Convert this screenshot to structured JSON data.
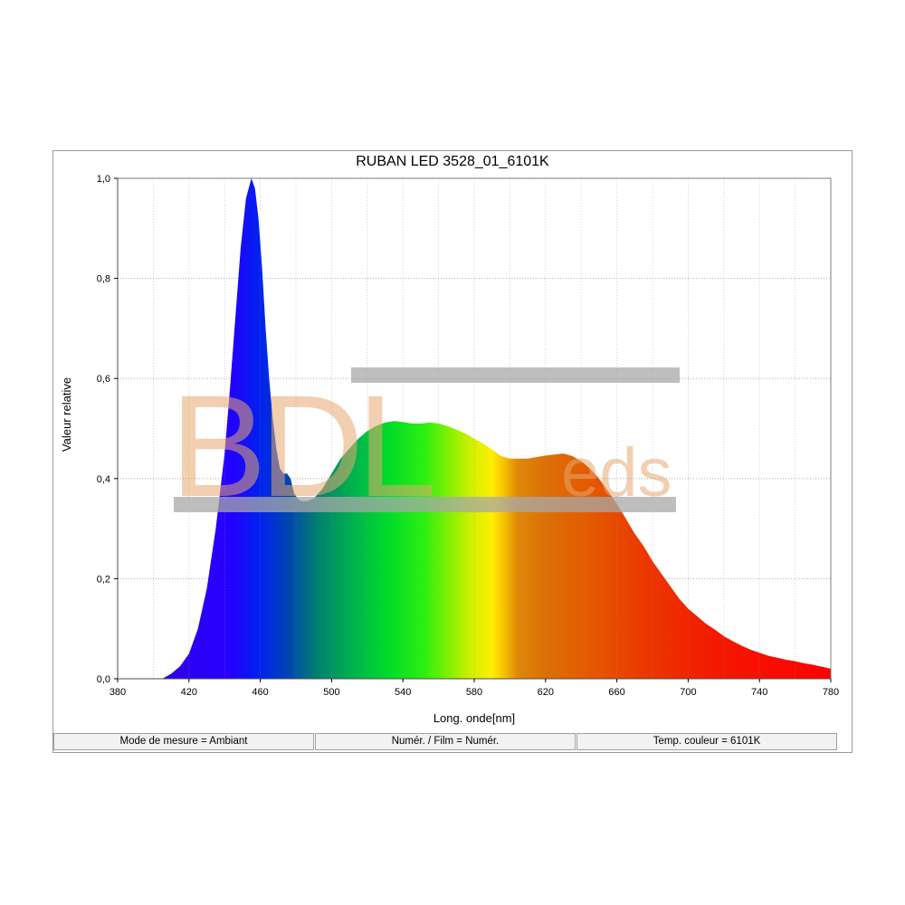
{
  "chart_data": {
    "type": "area",
    "title": "RUBAN LED 3528_01_6101K",
    "xlabel": "Long. onde[nm]",
    "ylabel": "Valeur relative",
    "xlim": [
      380,
      780
    ],
    "ylim": [
      0,
      1.0
    ],
    "x_ticks": [
      "380",
      "420",
      "460",
      "500",
      "540",
      "580",
      "620",
      "660",
      "700",
      "740",
      "780"
    ],
    "y_ticks": [
      "0,0",
      "0,2",
      "0,4",
      "0,6",
      "0,8",
      "1,0"
    ],
    "grid": true,
    "fill": "visible spectrum gradient",
    "series": [
      {
        "x": [
          405,
          410,
          415,
          420,
          425,
          430,
          435,
          440,
          443,
          446,
          449,
          452,
          455,
          457,
          459,
          461,
          463,
          465,
          467,
          469,
          471,
          473,
          475,
          477,
          479,
          481,
          483,
          486,
          490,
          495,
          500,
          505,
          510,
          515,
          520,
          525,
          530,
          535,
          540,
          545,
          550,
          555,
          560,
          565,
          570,
          575,
          580,
          585,
          590,
          595,
          600,
          605,
          610,
          615,
          620,
          625,
          630,
          635,
          640,
          645,
          650,
          655,
          660,
          665,
          670,
          675,
          680,
          685,
          690,
          695,
          700,
          705,
          710,
          715,
          720,
          725,
          730,
          735,
          740,
          745,
          750,
          755,
          760,
          765,
          770,
          775,
          780
        ],
        "y": [
          0.0,
          0.01,
          0.025,
          0.05,
          0.1,
          0.18,
          0.3,
          0.45,
          0.58,
          0.72,
          0.86,
          0.96,
          1.0,
          0.98,
          0.92,
          0.82,
          0.7,
          0.6,
          0.52,
          0.46,
          0.42,
          0.41,
          0.41,
          0.4,
          0.37,
          0.36,
          0.355,
          0.355,
          0.36,
          0.38,
          0.41,
          0.44,
          0.46,
          0.48,
          0.495,
          0.505,
          0.512,
          0.515,
          0.513,
          0.51,
          0.51,
          0.512,
          0.51,
          0.505,
          0.498,
          0.49,
          0.48,
          0.47,
          0.458,
          0.445,
          0.44,
          0.44,
          0.44,
          0.443,
          0.446,
          0.448,
          0.45,
          0.445,
          0.435,
          0.42,
          0.4,
          0.375,
          0.35,
          0.32,
          0.29,
          0.265,
          0.235,
          0.21,
          0.185,
          0.16,
          0.14,
          0.125,
          0.11,
          0.098,
          0.085,
          0.075,
          0.066,
          0.058,
          0.052,
          0.046,
          0.042,
          0.038,
          0.035,
          0.031,
          0.028,
          0.024,
          0.02
        ]
      }
    ]
  },
  "watermark": {
    "main": "BDL",
    "sub": "eds",
    "color": "#e6a870"
  },
  "status_bar": [
    "Mode de mesure = Ambiant",
    "Numér. / Film = Numér.",
    "Temp. couleur = 6101K"
  ]
}
